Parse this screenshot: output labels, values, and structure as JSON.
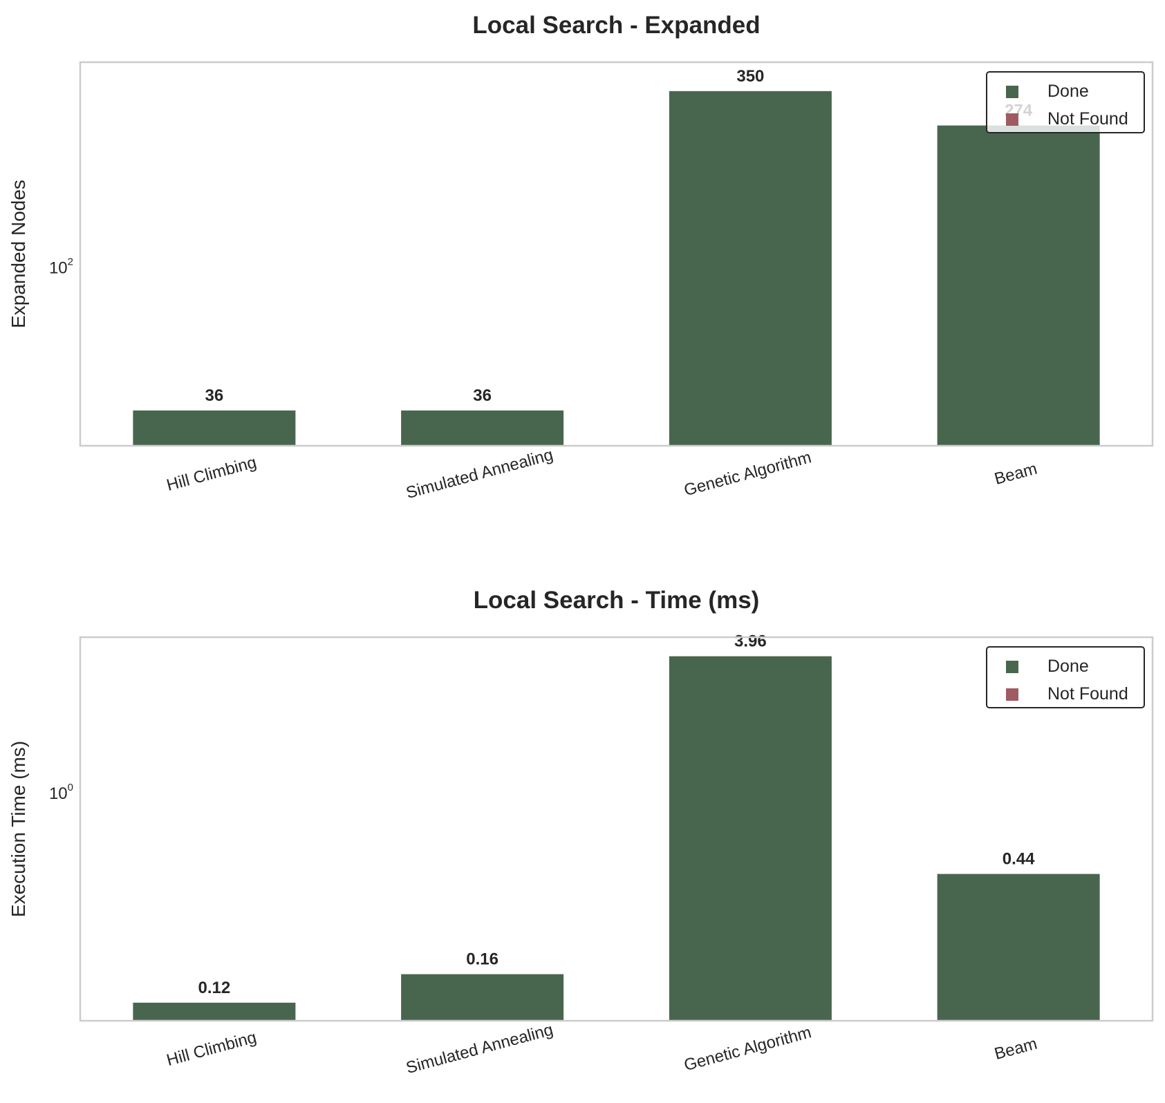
{
  "colors": {
    "done": "#48664e",
    "not_found": "#a05a62",
    "frame": "#cccccc",
    "text": "#262626"
  },
  "legend_labels": [
    "Done",
    "Not Found"
  ],
  "legend_placement": "top-right",
  "chart_data": [
    {
      "type": "bar",
      "title": "Local Search - Expanded",
      "ylabel": "Expanded Nodes",
      "xlabel": "",
      "yscale": "log",
      "ylim": [
        28,
        430
      ],
      "ytick_values": [
        100
      ],
      "ytick_base": "10",
      "ytick_exponents": [
        "2"
      ],
      "categories": [
        "Hill Climbing",
        "Simulated Annealing",
        "Genetic Algorithm",
        "Beam"
      ],
      "values": [
        36,
        36,
        350,
        274
      ],
      "value_labels": [
        "36",
        "36",
        "350",
        "274"
      ],
      "status": [
        "Done",
        "Done",
        "Done",
        "Done"
      ],
      "grid": false
    },
    {
      "type": "bar",
      "title": "Local Search - Time (ms)",
      "ylabel": "Execution Time (ms)",
      "xlabel": "",
      "yscale": "log",
      "ylim": [
        0.1,
        4.8
      ],
      "ytick_values": [
        1
      ],
      "ytick_base": "10",
      "ytick_exponents": [
        "0"
      ],
      "categories": [
        "Hill Climbing",
        "Simulated Annealing",
        "Genetic Algorithm",
        "Beam"
      ],
      "values": [
        0.12,
        0.16,
        3.96,
        0.44
      ],
      "value_labels": [
        "0.12",
        "0.16",
        "3.96",
        "0.44"
      ],
      "status": [
        "Done",
        "Done",
        "Done",
        "Done"
      ],
      "grid": false
    }
  ]
}
